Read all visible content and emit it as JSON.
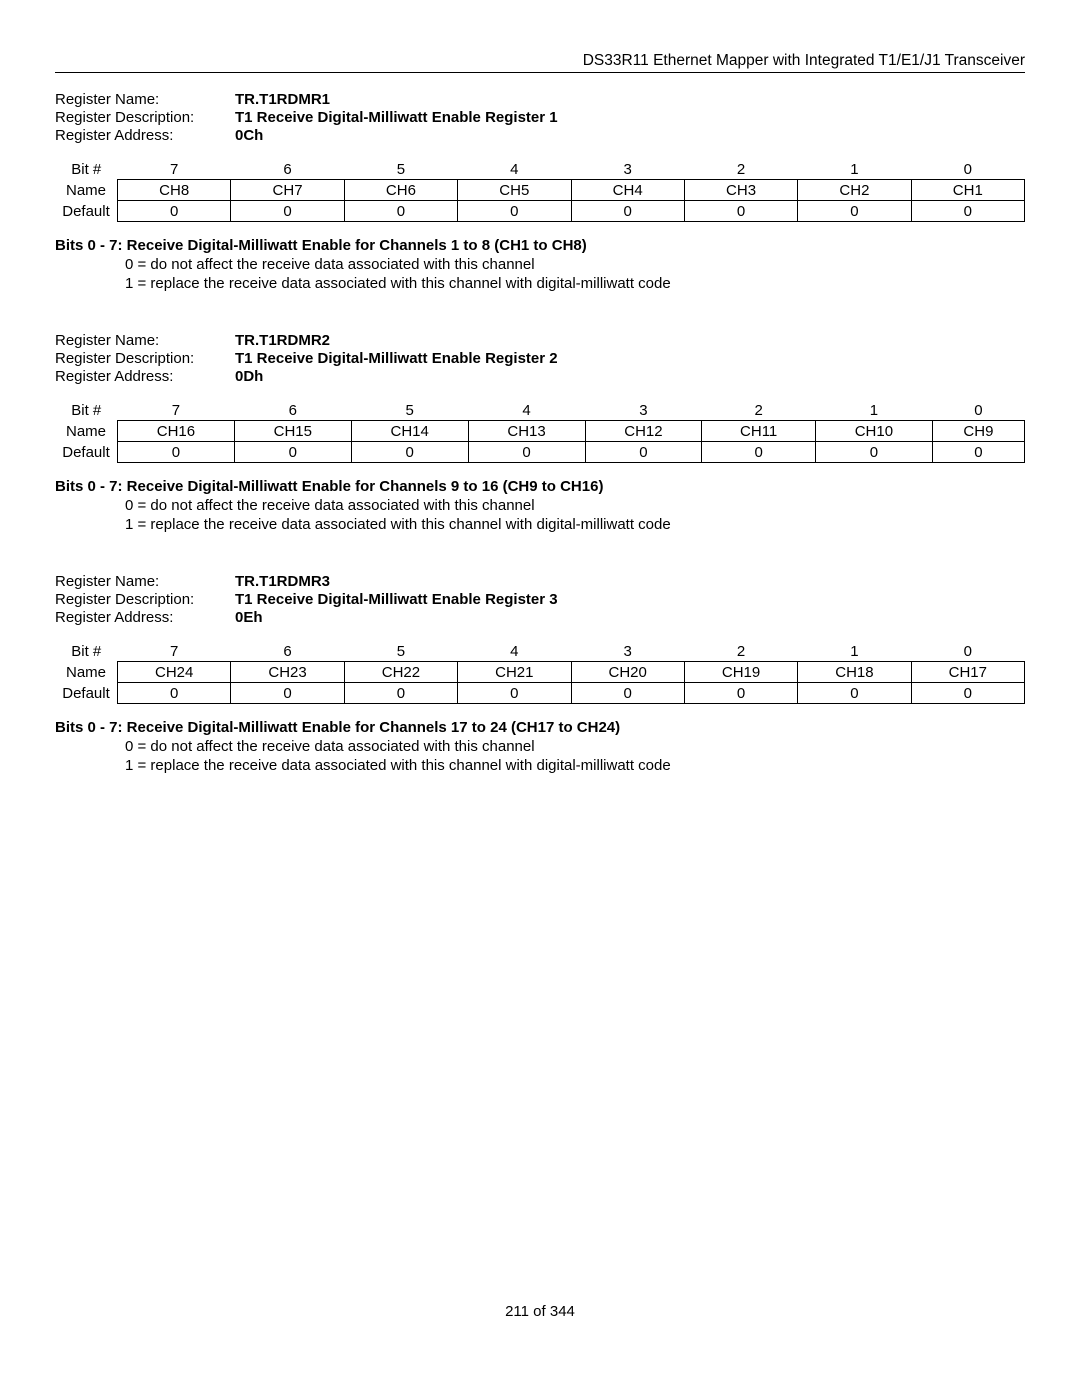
{
  "doc_title": "DS33R11 Ethernet Mapper with Integrated T1/E1/J1 Transceiver",
  "footer": "211 of 344",
  "labels": {
    "reg_name": "Register Name:",
    "reg_desc": "Register Description:",
    "reg_addr": "Register Address:",
    "bit_hash": "Bit #",
    "name": "Name",
    "default": "Default"
  },
  "bit_numbers": [
    "7",
    "6",
    "5",
    "4",
    "3",
    "2",
    "1",
    "0"
  ],
  "defaults": [
    "0",
    "0",
    "0",
    "0",
    "0",
    "0",
    "0",
    "0"
  ],
  "registers": [
    {
      "name": "TR.T1RDMR1",
      "desc": "T1 Receive Digital-Milliwatt Enable Register 1",
      "addr": "0Ch",
      "cells": [
        "CH8",
        "CH7",
        "CH6",
        "CH5",
        "CH4",
        "CH3",
        "CH2",
        "CH1"
      ],
      "bits_title": "Bits 0 -  7: Receive Digital-Milliwatt Enable for Channels 1 to 8 (CH1 to CH8)",
      "line0": "0 = do not affect the receive data associated with this channel",
      "line1": "1 = replace the receive data associated with this channel with digital-milliwatt code"
    },
    {
      "name": "TR.T1RDMR2",
      "desc": "T1 Receive Digital-Milliwatt Enable Register 2",
      "addr": "0Dh",
      "cells": [
        "CH16",
        "CH15",
        "CH14",
        "CH13",
        "CH12",
        "CH11",
        "CH10",
        "CH9"
      ],
      "bits_title": "Bits 0 - 7: Receive Digital-Milliwatt Enable for Channels 9 to 16 (CH9 to CH16)",
      "line0": "0 = do not affect the receive data associated with this channel",
      "line1": "1 = replace the receive data associated with this channel with digital-milliwatt code"
    },
    {
      "name": "TR.T1RDMR3",
      "desc": "T1 Receive Digital-Milliwatt Enable Register 3",
      "addr": "0Eh",
      "cells": [
        "CH24",
        "CH23",
        "CH22",
        "CH21",
        "CH20",
        "CH19",
        "CH18",
        "CH17"
      ],
      "bits_title": "Bits 0 -  7: Receive Digital-Milliwatt Enable for Channels 17 to 24 (CH17 to CH24)",
      "line0": "0 = do not affect the receive data associated with this channel",
      "line1": "1 = replace the receive data associated with this channel with digital-milliwatt code"
    }
  ]
}
